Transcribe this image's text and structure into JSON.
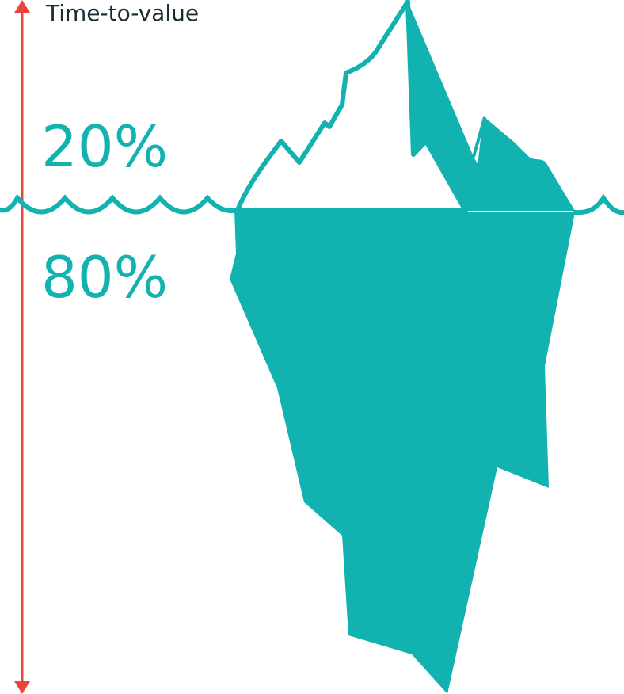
{
  "title": "Time-to-value",
  "above_water": "20%",
  "below_water": "80%"
}
